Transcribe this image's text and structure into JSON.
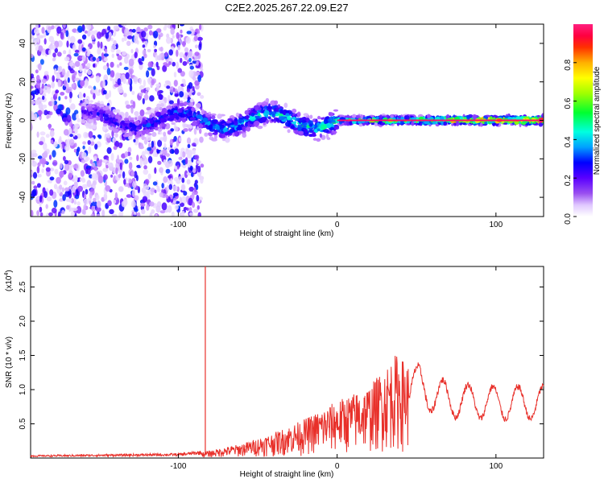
{
  "title": "C2E2.2025.267.22.09.E27",
  "chart_data": [
    {
      "type": "heatmap",
      "xlabel": "Height of straight line (km)",
      "ylabel": "Frequency (Hz)",
      "xlim": [
        -193,
        130
      ],
      "ylim": [
        -50,
        50
      ],
      "xticks": [
        -100,
        0,
        100
      ],
      "yticks": [
        -40,
        -20,
        0,
        20,
        40
      ],
      "colorbar": {
        "label": "Normalized spectral amplitude",
        "range": [
          0.0,
          1.0
        ],
        "ticks": [
          0.0,
          0.2,
          0.4,
          0.6,
          0.8
        ],
        "colors": [
          "#ffffff",
          "#e0c8ff",
          "#b060ff",
          "#5000ff",
          "#0000ff",
          "#00a0ff",
          "#00ffe0",
          "#00ff40",
          "#a0ff00",
          "#ffff00",
          "#ffb000",
          "#ff4000",
          "#ff0060",
          "#ff2080"
        ]
      },
      "description_regions": [
        {
          "x_range": [
            -193,
            -85
          ],
          "type": "noise",
          "amplitude": [
            0.05,
            0.35
          ]
        },
        {
          "x_range": [
            -160,
            0
          ],
          "type": "ridge",
          "center_hz": 0,
          "spread_hz": 6,
          "amplitude": [
            0.3,
            0.6
          ]
        },
        {
          "x_range": [
            0,
            130
          ],
          "type": "ridge",
          "center_hz": 0,
          "spread_hz": 2,
          "amplitude": [
            0.6,
            1.0
          ]
        }
      ]
    },
    {
      "type": "line",
      "xlabel": "Height of straight line (km)",
      "ylabel": "SNR (10 * v/v)",
      "yscale_label": "(x10",
      "yscale_exp": "4",
      "yscale_close": ")",
      "xlim": [
        -193,
        130
      ],
      "ylim": [
        0,
        2.8
      ],
      "xticks": [
        -100,
        0,
        100
      ],
      "yticks": [
        0.5,
        1.0,
        1.5,
        2.0,
        2.5
      ],
      "ytick_labels": [
        "0.5",
        "1.0",
        "1.5",
        "2.0",
        "2.5"
      ],
      "color": "#e8302a",
      "spike": {
        "x": -83,
        "y": 2.8
      },
      "envelope": [
        {
          "x": -193,
          "y": 0.03
        },
        {
          "x": -100,
          "y": 0.05
        },
        {
          "x": -85,
          "y": 0.08
        },
        {
          "x": -60,
          "y": 0.2
        },
        {
          "x": -40,
          "y": 0.35
        },
        {
          "x": -20,
          "y": 0.55
        },
        {
          "x": 0,
          "y": 0.8
        },
        {
          "x": 20,
          "y": 1.0
        },
        {
          "x": 37,
          "y": 1.45
        },
        {
          "x": 52,
          "y": 1.2
        },
        {
          "x": 70,
          "y": 1.0
        },
        {
          "x": 100,
          "y": 0.95
        },
        {
          "x": 130,
          "y": 0.95
        }
      ]
    }
  ]
}
